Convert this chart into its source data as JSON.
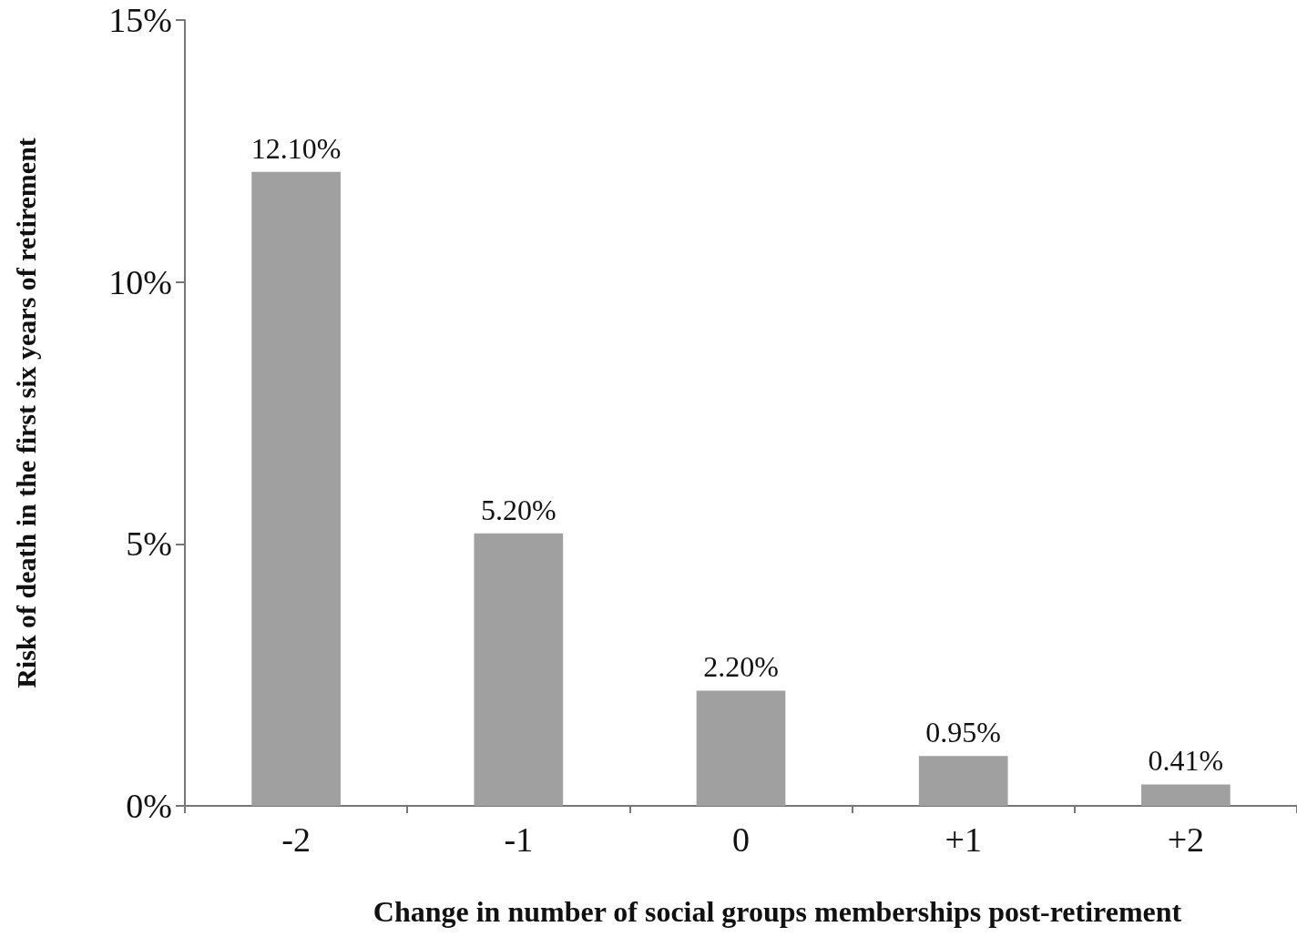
{
  "chart_data": {
    "type": "bar",
    "xlabel": "Change in number of social groups memberships post-retirement",
    "ylabel": "Risk of death in the first six years of retirement",
    "categories": [
      "-2",
      "-1",
      "0",
      "+1",
      "+2"
    ],
    "values": [
      12.1,
      5.2,
      2.2,
      0.95,
      0.41
    ],
    "value_labels": [
      "12.10%",
      "5.20%",
      "2.20%",
      "0.95%",
      "0.41%"
    ],
    "color": "#a0a0a0",
    "ylim": [
      0,
      15
    ],
    "yticks": [
      {
        "value": 0,
        "label": "0%"
      },
      {
        "value": 5,
        "label": "5%"
      },
      {
        "value": 10,
        "label": "10%"
      },
      {
        "value": 15,
        "label": "15%"
      }
    ],
    "grid": false
  }
}
